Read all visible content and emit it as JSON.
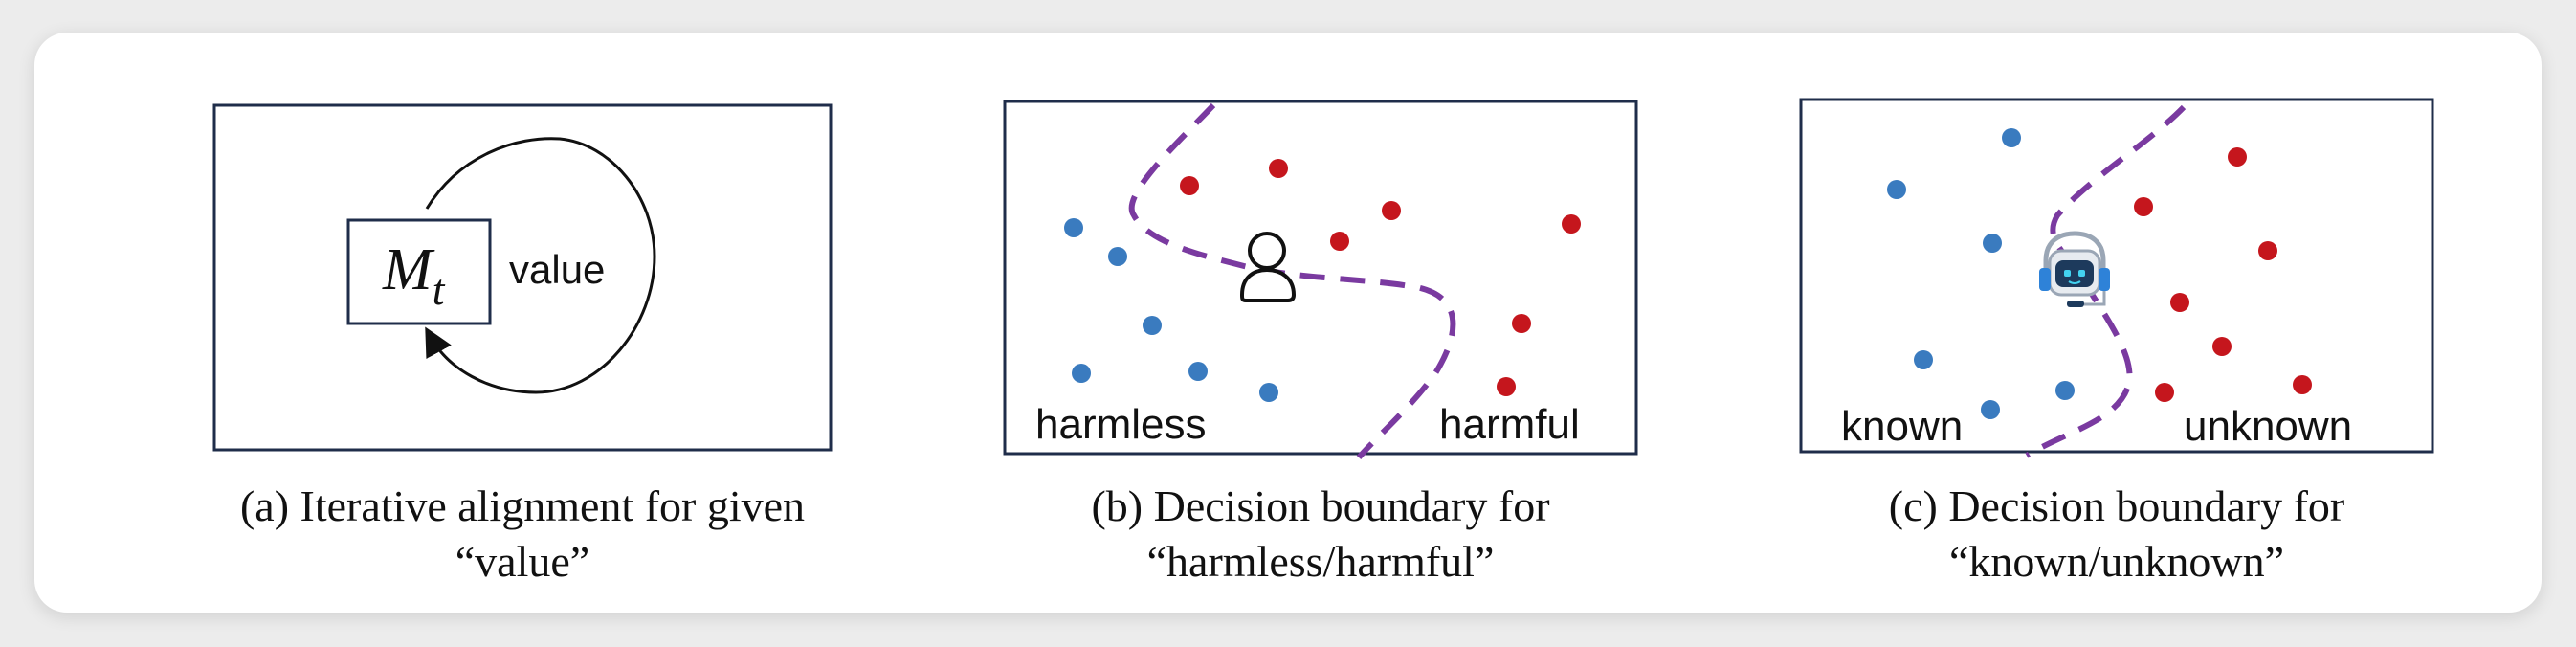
{
  "colors": {
    "blue_point": "#3a7bbf",
    "red_point": "#c5161d",
    "boundary": "#7a3aa0",
    "frame": "#1f2d4a"
  },
  "panel_a": {
    "model_symbol": "M",
    "model_subscript": "t",
    "loop_label": "value",
    "caption_line1": "(a) Iterative alignment for given",
    "caption_line2": "“value”"
  },
  "panel_b": {
    "left_label": "harmless",
    "right_label": "harmful",
    "center_icon": "person-icon",
    "caption_line1": "(b) Decision boundary for",
    "caption_line2": "“harmless/harmful”"
  },
  "panel_c": {
    "left_label": "known",
    "right_label": "unknown",
    "center_icon": "robot-headset-icon",
    "caption_line1": "(c) Decision boundary for",
    "caption_line2": "“known/unknown”"
  }
}
